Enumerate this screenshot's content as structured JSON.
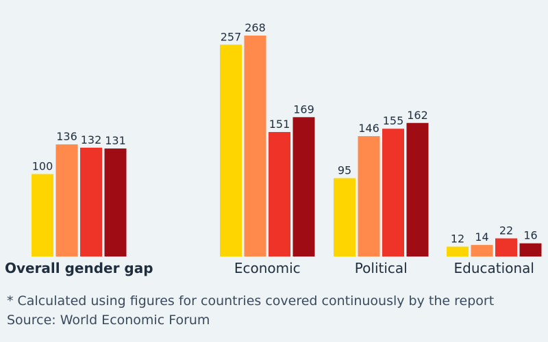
{
  "chart_data": {
    "type": "bar",
    "categories": [
      "Overall gender gap",
      "Economic",
      "Political",
      "Educational"
    ],
    "series": [
      {
        "values": [
          100,
          257,
          95,
          12
        ],
        "color": "#ffd500"
      },
      {
        "values": [
          136,
          268,
          146,
          14
        ],
        "color": "#ff8a4c"
      },
      {
        "values": [
          132,
          151,
          155,
          22
        ],
        "color": "#ee3429"
      },
      {
        "values": [
          131,
          169,
          162,
          16
        ],
        "color": "#a00c14"
      }
    ],
    "bold_categories": [
      "Overall gender gap"
    ],
    "title": "",
    "xlabel": "",
    "ylabel": "",
    "ylim": [
      0,
      268
    ],
    "grid": false,
    "data_labels": true
  },
  "footer": {
    "note": "* Calculated using figures for countries covered continuously by the report",
    "source": "Source: World Economic Forum"
  }
}
